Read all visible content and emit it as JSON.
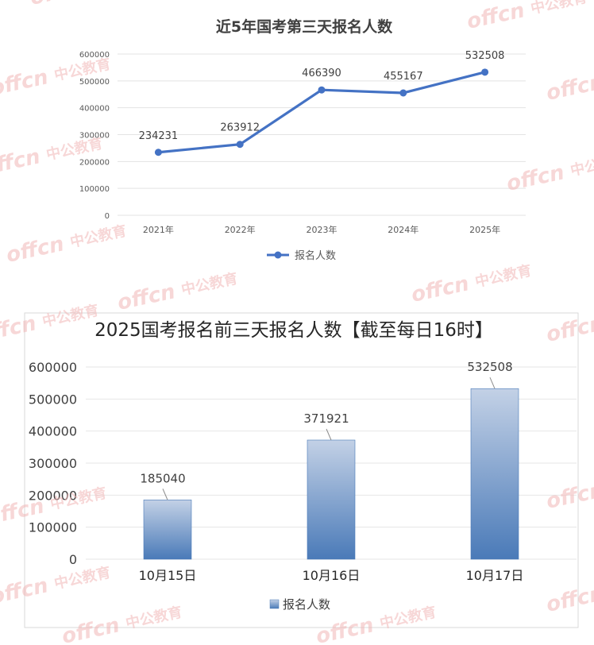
{
  "chart_data": [
    {
      "type": "line",
      "title": "近5年国考第三天报名人数",
      "categories": [
        "2021年",
        "2022年",
        "2023年",
        "2024年",
        "2025年"
      ],
      "series": [
        {
          "name": "报名人数",
          "values": [
            234231,
            263912,
            466390,
            455167,
            532508
          ],
          "color": "#4472C4"
        }
      ],
      "y_ticks": [
        "600000",
        "500000",
        "400000",
        "300000",
        "200000",
        "100000",
        "0"
      ],
      "data_labels": [
        "234231",
        "263912",
        "466390",
        "455167",
        "532508"
      ],
      "ylim": [
        0,
        600000
      ],
      "grid": true,
      "legend": "bottom"
    },
    {
      "type": "bar",
      "title": "2025国考报名前三天报名人数【截至每日16时】",
      "categories": [
        "10月15日",
        "10月16日",
        "10月17日"
      ],
      "series": [
        {
          "name": "报名人数",
          "values": [
            185040,
            371921,
            532508
          ],
          "color": "#4A7AB8"
        }
      ],
      "y_ticks": [
        "600000",
        "500000",
        "400000",
        "300000",
        "200000",
        "100000",
        "0"
      ],
      "data_labels": [
        "185040",
        "371921",
        "532508"
      ],
      "ylim": [
        0,
        600000
      ],
      "grid": true,
      "legend": "bottom"
    }
  ],
  "watermark": {
    "logo_text": "offcn",
    "brand_text": "中公教育",
    "color": "#F2B8B8"
  }
}
